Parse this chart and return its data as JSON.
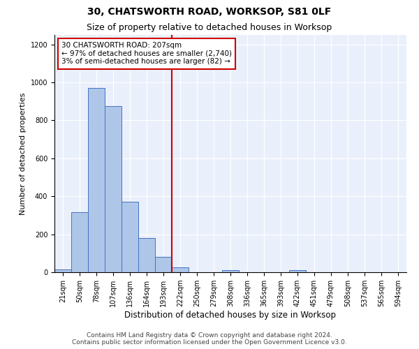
{
  "title": "30, CHATSWORTH ROAD, WORKSOP, S81 0LF",
  "subtitle": "Size of property relative to detached houses in Worksop",
  "xlabel": "Distribution of detached houses by size in Worksop",
  "ylabel": "Number of detached properties",
  "bin_labels": [
    "21sqm",
    "50sqm",
    "78sqm",
    "107sqm",
    "136sqm",
    "164sqm",
    "193sqm",
    "222sqm",
    "250sqm",
    "279sqm",
    "308sqm",
    "336sqm",
    "365sqm",
    "393sqm",
    "422sqm",
    "451sqm",
    "479sqm",
    "508sqm",
    "537sqm",
    "565sqm",
    "594sqm"
  ],
  "bar_values": [
    13,
    315,
    970,
    875,
    370,
    180,
    80,
    25,
    0,
    0,
    12,
    0,
    0,
    0,
    12,
    0,
    0,
    0,
    0,
    0,
    0
  ],
  "bar_color": "#aec6e8",
  "bar_edge_color": "#4472c4",
  "vline_x": 7.0,
  "vline_color": "#cc0000",
  "annotation_text": "30 CHATSWORTH ROAD: 207sqm\n← 97% of detached houses are smaller (2,740)\n3% of semi-detached houses are larger (82) →",
  "annotation_box_color": "#ffffff",
  "annotation_box_edge": "#cc0000",
  "ylim": [
    0,
    1250
  ],
  "yticks": [
    0,
    200,
    400,
    600,
    800,
    1000,
    1200
  ],
  "footer_text": "Contains HM Land Registry data © Crown copyright and database right 2024.\nContains public sector information licensed under the Open Government Licence v3.0.",
  "plot_bg": "#eaf0fb",
  "title_fontsize": 10,
  "subtitle_fontsize": 9,
  "axis_label_fontsize": 8,
  "tick_fontsize": 7,
  "annotation_fontsize": 7.5,
  "footer_fontsize": 6.5
}
